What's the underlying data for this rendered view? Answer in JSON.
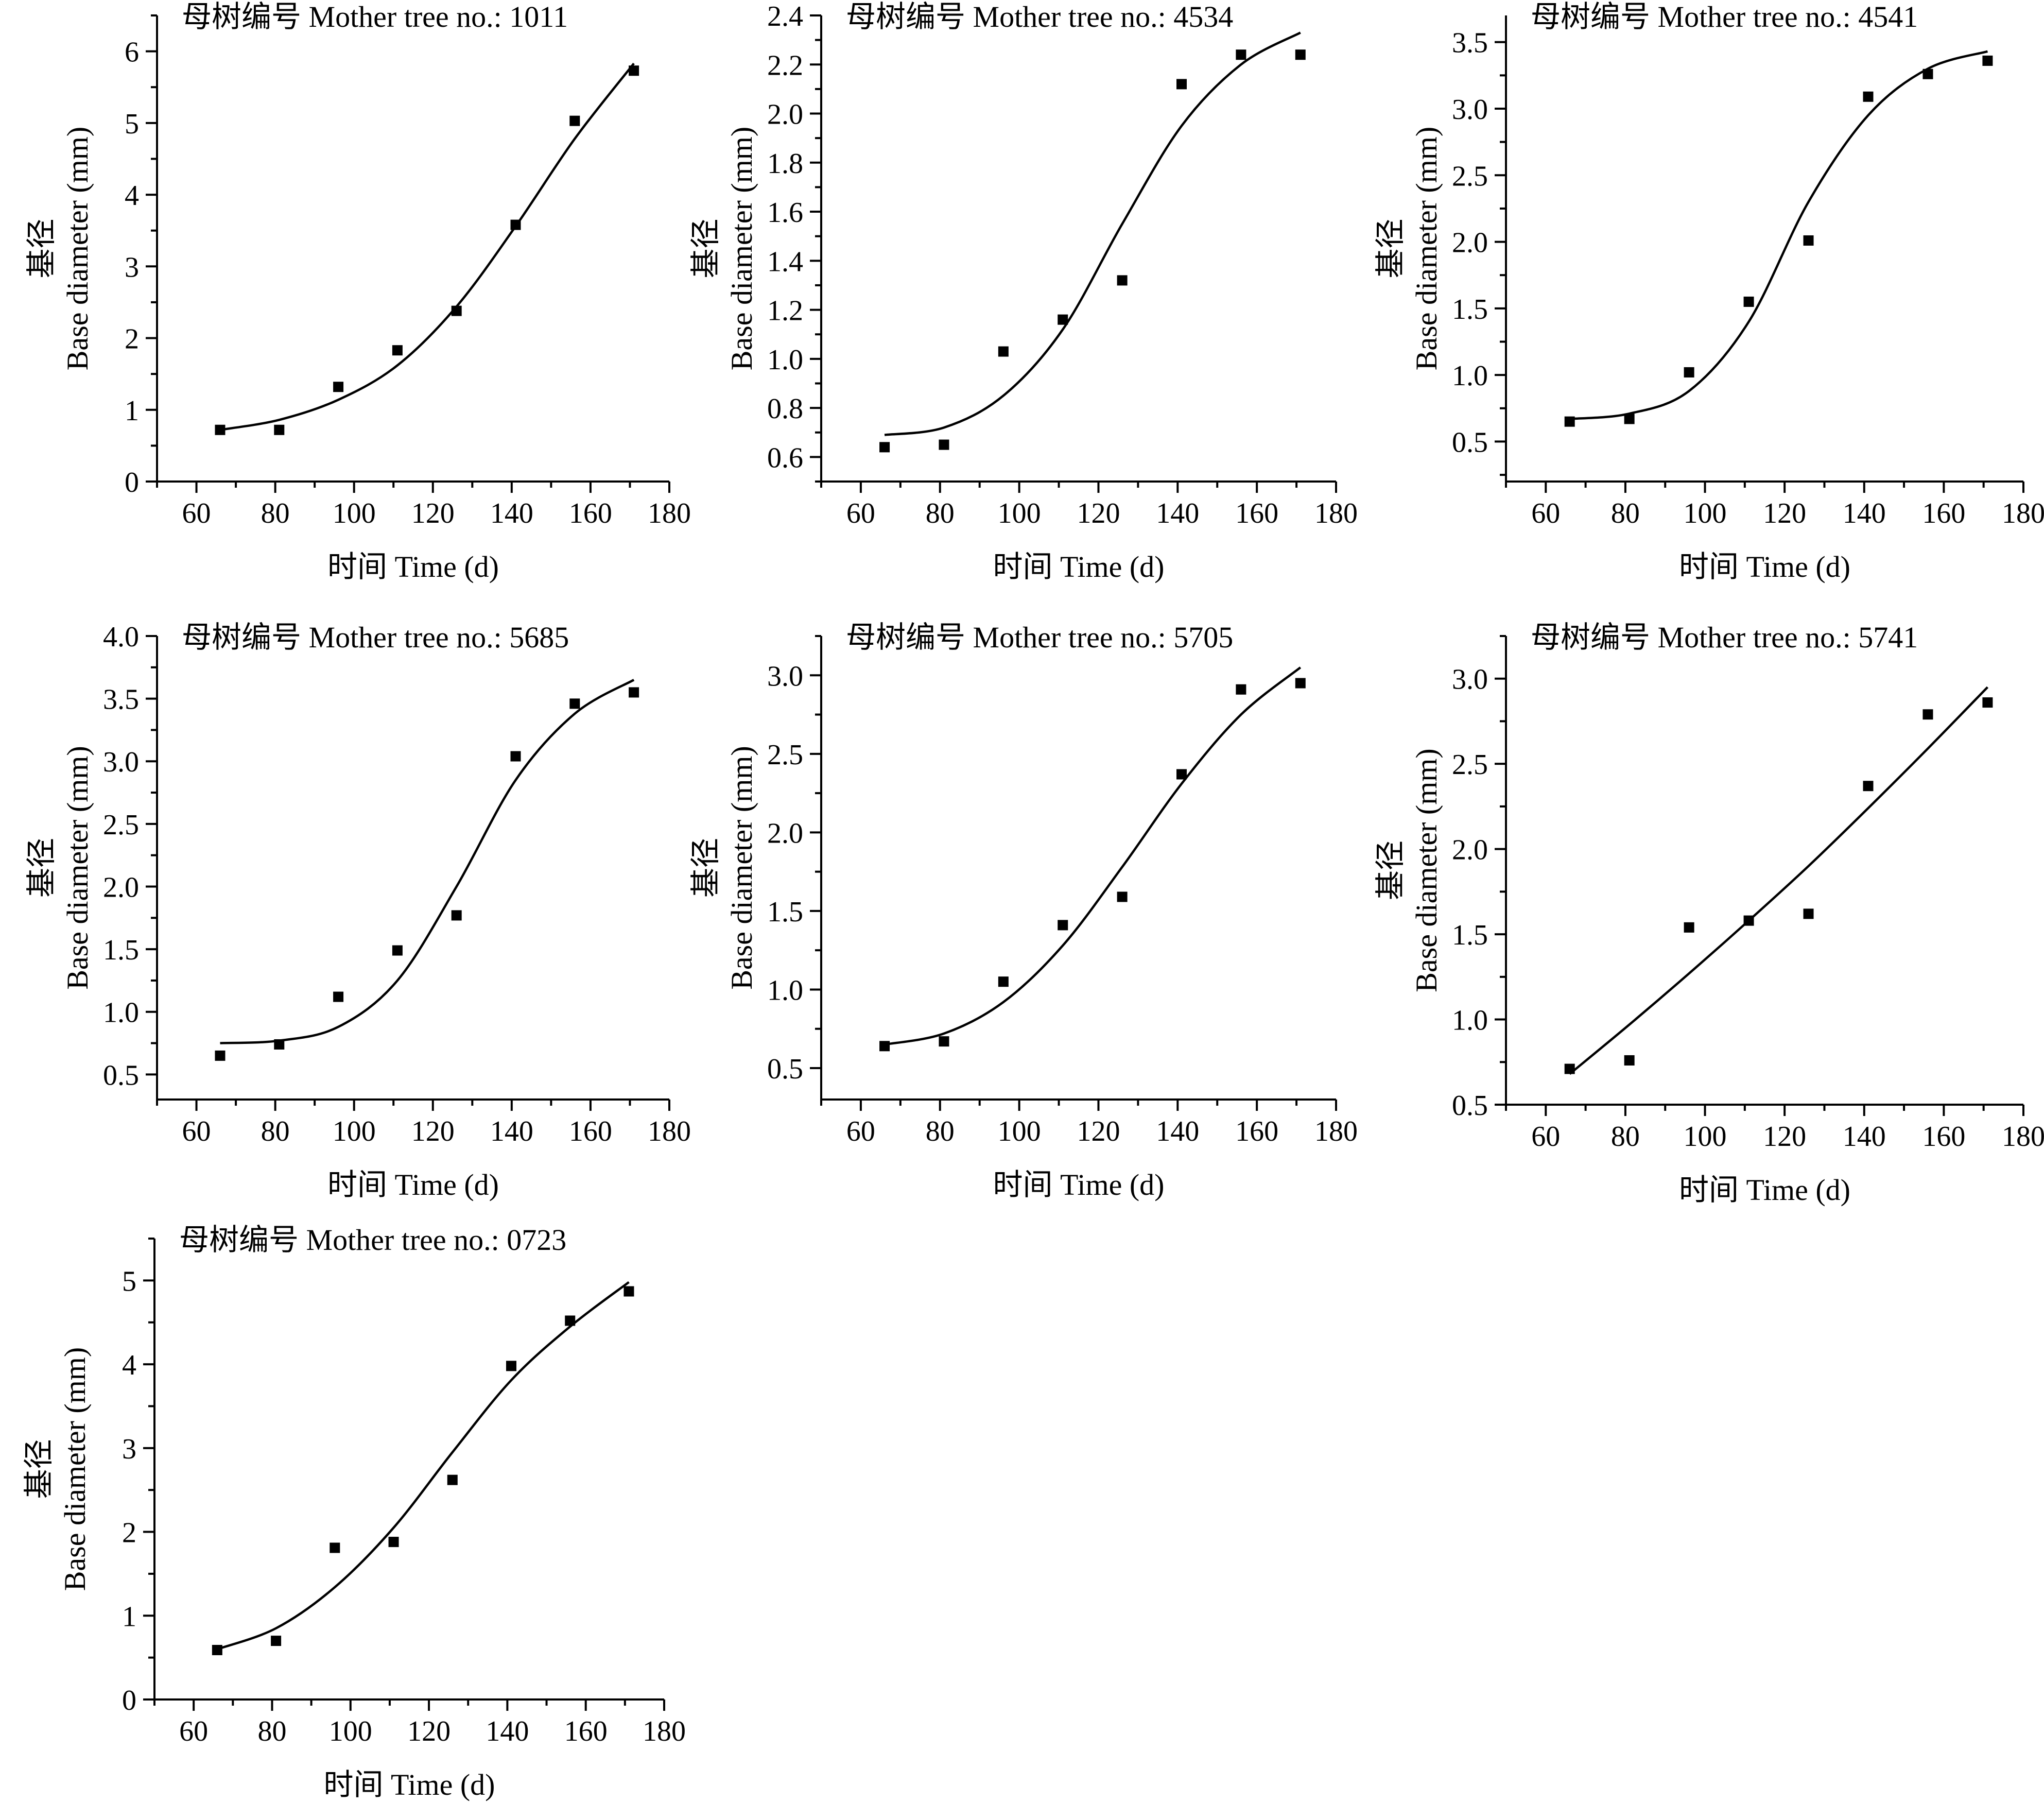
{
  "chart_data": [
    {
      "type": "scatter",
      "title": "母树编号 Mother tree no.: 1011",
      "xlabel": "时间 Time (d)",
      "ylabel_top": "基径",
      "ylabel_bottom": "Base diameter (mm)",
      "xlim": [
        50,
        180
      ],
      "ylim": [
        0,
        6.5
      ],
      "xticks": [
        60,
        80,
        100,
        120,
        140,
        160,
        180
      ],
      "yticks": [
        0,
        1,
        2,
        3,
        4,
        5,
        6
      ],
      "ytick_decimals": 0,
      "x": [
        66,
        81,
        96,
        111,
        126,
        141,
        156,
        171
      ],
      "y": [
        0.72,
        0.72,
        1.32,
        1.83,
        2.38,
        3.58,
        5.03,
        5.73
      ],
      "fit": {
        "x": [
          66,
          81,
          96,
          111,
          126,
          141,
          156,
          171
        ],
        "y": [
          0.72,
          0.86,
          1.14,
          1.62,
          2.44,
          3.56,
          4.78,
          5.83
        ]
      }
    },
    {
      "type": "scatter",
      "title": "母树编号 Mother tree no.: 4534",
      "xlabel": "时间 Time (d)",
      "ylabel_top": "基径",
      "ylabel_bottom": "Base diameter (mm)",
      "xlim": [
        50,
        180
      ],
      "ylim": [
        0.5,
        2.4
      ],
      "xticks": [
        60,
        80,
        100,
        120,
        140,
        160,
        180
      ],
      "yticks": [
        0.6,
        0.8,
        1.0,
        1.2,
        1.4,
        1.6,
        1.8,
        2.0,
        2.2,
        2.4
      ],
      "ytick_decimals": 1,
      "x": [
        66,
        81,
        96,
        111,
        126,
        141,
        156,
        171
      ],
      "y": [
        0.64,
        0.65,
        1.03,
        1.16,
        1.32,
        2.12,
        2.24,
        2.24
      ],
      "fit": {
        "x": [
          66,
          81,
          96,
          111,
          126,
          141,
          156,
          171
        ],
        "y": [
          0.69,
          0.72,
          0.85,
          1.12,
          1.55,
          1.95,
          2.2,
          2.33
        ]
      }
    },
    {
      "type": "scatter",
      "title": "母树编号 Mother tree no.: 4541",
      "xlabel": "时间 Time (d)",
      "ylabel_top": "基径",
      "ylabel_bottom": "Base diameter (mm)",
      "xlim": [
        50,
        180
      ],
      "ylim": [
        0.2,
        3.7
      ],
      "xticks": [
        60,
        80,
        100,
        120,
        140,
        160,
        180
      ],
      "yticks": [
        0.5,
        1.0,
        1.5,
        2.0,
        2.5,
        3.0,
        3.5
      ],
      "ytick_decimals": 1,
      "x": [
        66,
        81,
        96,
        111,
        126,
        141,
        156,
        171
      ],
      "y": [
        0.65,
        0.67,
        1.02,
        1.55,
        2.01,
        3.09,
        3.26,
        3.36
      ],
      "fit": {
        "x": [
          66,
          81,
          96,
          111,
          126,
          141,
          156,
          171
        ],
        "y": [
          0.67,
          0.71,
          0.88,
          1.4,
          2.3,
          2.95,
          3.3,
          3.43
        ]
      }
    },
    {
      "type": "scatter",
      "title": "母树编号 Mother tree no.: 5685",
      "xlabel": "时间 Time (d)",
      "ylabel_top": "基径",
      "ylabel_bottom": "Base diameter (mm)",
      "xlim": [
        50,
        180
      ],
      "ylim": [
        0.3,
        4.0
      ],
      "xticks": [
        60,
        80,
        100,
        120,
        140,
        160,
        180
      ],
      "yticks": [
        0.5,
        1.0,
        1.5,
        2.0,
        2.5,
        3.0,
        3.5,
        4.0
      ],
      "ytick_decimals": 1,
      "x": [
        66,
        81,
        96,
        111,
        126,
        141,
        156,
        171
      ],
      "y": [
        0.65,
        0.74,
        1.12,
        1.49,
        1.77,
        3.04,
        3.46,
        3.55
      ],
      "fit": {
        "x": [
          66,
          81,
          96,
          111,
          126,
          141,
          156,
          171
        ],
        "y": [
          0.75,
          0.77,
          0.88,
          1.25,
          2.0,
          2.85,
          3.38,
          3.65
        ]
      }
    },
    {
      "type": "scatter",
      "title": "母树编号 Mother tree no.: 5705",
      "xlabel": "时间 Time (d)",
      "ylabel_top": "基径",
      "ylabel_bottom": "Base diameter (mm)",
      "xlim": [
        50,
        180
      ],
      "ylim": [
        0.3,
        3.25
      ],
      "xticks": [
        60,
        80,
        100,
        120,
        140,
        160,
        180
      ],
      "yticks": [
        0.5,
        1.0,
        1.5,
        2.0,
        2.5,
        3.0
      ],
      "ytick_decimals": 1,
      "x": [
        66,
        81,
        96,
        111,
        126,
        141,
        156,
        171
      ],
      "y": [
        0.64,
        0.67,
        1.05,
        1.41,
        1.59,
        2.37,
        2.91,
        2.95
      ],
      "fit": {
        "x": [
          66,
          81,
          96,
          111,
          126,
          141,
          156,
          171
        ],
        "y": [
          0.65,
          0.72,
          0.92,
          1.28,
          1.78,
          2.31,
          2.75,
          3.05
        ]
      }
    },
    {
      "type": "scatter",
      "title": "母树编号 Mother tree no.: 5741",
      "xlabel": "时间 Time (d)",
      "ylabel_top": "基径",
      "ylabel_bottom": "Base diameter (mm)",
      "xlim": [
        50,
        180
      ],
      "ylim": [
        0.5,
        3.25
      ],
      "xticks": [
        60,
        80,
        100,
        120,
        140,
        160,
        180
      ],
      "yticks": [
        0.5,
        1.0,
        1.5,
        2.0,
        2.5,
        3.0
      ],
      "ytick_decimals": 1,
      "x": [
        66,
        81,
        96,
        111,
        126,
        141,
        156,
        171
      ],
      "y": [
        0.71,
        0.76,
        1.54,
        1.58,
        1.62,
        2.37,
        2.79,
        2.86
      ],
      "fit": {
        "x": [
          66,
          81,
          96,
          111,
          126,
          141,
          156,
          171
        ],
        "y": [
          0.68,
          0.97,
          1.27,
          1.58,
          1.9,
          2.24,
          2.59,
          2.95
        ]
      }
    },
    {
      "type": "scatter",
      "title": "母树编号 Mother tree no.: 0723",
      "xlabel": "时间 Time (d)",
      "ylabel_top": "基径",
      "ylabel_bottom": "Base diameter (mm)",
      "xlim": [
        50,
        180
      ],
      "ylim": [
        0,
        5.5
      ],
      "xticks": [
        60,
        80,
        100,
        120,
        140,
        160,
        180
      ],
      "yticks": [
        0,
        1,
        2,
        3,
        4,
        5
      ],
      "ytick_decimals": 0,
      "x": [
        66,
        81,
        96,
        111,
        126,
        141,
        156,
        171
      ],
      "y": [
        0.59,
        0.7,
        1.81,
        1.88,
        2.62,
        3.98,
        4.52,
        4.87
      ],
      "fit": {
        "x": [
          66,
          81,
          96,
          111,
          126,
          141,
          156,
          171
        ],
        "y": [
          0.6,
          0.85,
          1.34,
          2.05,
          2.95,
          3.81,
          4.45,
          4.98
        ]
      }
    }
  ]
}
